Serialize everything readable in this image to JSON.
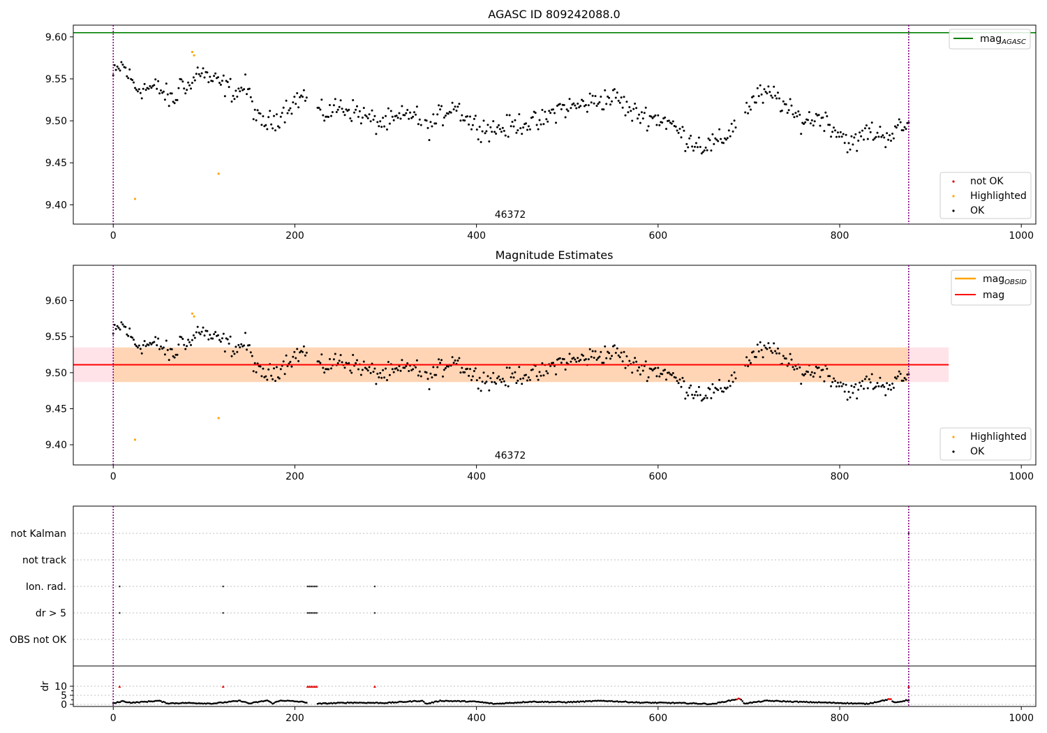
{
  "chart_data": [
    {
      "type": "scatter",
      "title": "AGASC ID 809242088.0",
      "obsid_label": "46372",
      "xlim": [
        -44,
        1016
      ],
      "ylim": [
        9.377,
        9.614
      ],
      "xticks": [
        0,
        200,
        400,
        600,
        800,
        1000
      ],
      "yticks": [
        9.4,
        9.45,
        9.5,
        9.55,
        9.6
      ],
      "obs_boundaries": [
        0,
        876
      ],
      "mag_agasc": 9.605,
      "highlighted_points": [
        [
          24,
          9.407
        ],
        [
          87,
          9.582
        ],
        [
          89,
          9.578
        ],
        [
          116,
          9.437
        ]
      ],
      "ok_series_profile": {
        "x_start": 0,
        "x_end": 876,
        "step": 1.5,
        "anchors": [
          [
            0,
            9.553
          ],
          [
            10,
            9.567
          ],
          [
            25,
            9.539
          ],
          [
            50,
            9.539
          ],
          [
            60,
            9.528
          ],
          [
            68,
            9.523
          ],
          [
            75,
            9.548
          ],
          [
            85,
            9.54
          ],
          [
            95,
            9.562
          ],
          [
            105,
            9.55
          ],
          [
            125,
            9.541
          ],
          [
            135,
            9.533
          ],
          [
            145,
            9.542
          ],
          [
            150,
            9.53
          ],
          [
            160,
            9.498
          ],
          [
            175,
            9.498
          ],
          [
            195,
            9.52
          ],
          [
            210,
            9.53
          ],
          [
            230,
            9.507
          ],
          [
            250,
            9.517
          ],
          [
            270,
            9.51
          ],
          [
            290,
            9.497
          ],
          [
            310,
            9.5
          ],
          [
            330,
            9.51
          ],
          [
            345,
            9.49
          ],
          [
            360,
            9.505
          ],
          [
            375,
            9.52
          ],
          [
            395,
            9.497
          ],
          [
            415,
            9.49
          ],
          [
            435,
            9.492
          ],
          [
            450,
            9.498
          ],
          [
            470,
            9.497
          ],
          [
            490,
            9.515
          ],
          [
            510,
            9.517
          ],
          [
            535,
            9.525
          ],
          [
            555,
            9.528
          ],
          [
            570,
            9.51
          ],
          [
            590,
            9.505
          ],
          [
            610,
            9.5
          ],
          [
            630,
            9.48
          ],
          [
            650,
            9.47
          ],
          [
            670,
            9.475
          ],
          [
            690,
            9.505
          ],
          [
            710,
            9.53
          ],
          [
            730,
            9.53
          ],
          [
            745,
            9.51
          ],
          [
            760,
            9.5
          ],
          [
            780,
            9.505
          ],
          [
            800,
            9.485
          ],
          [
            815,
            9.47
          ],
          [
            830,
            9.488
          ],
          [
            850,
            9.482
          ],
          [
            876,
            9.495
          ]
        ],
        "noise": 0.011
      },
      "legend_lines": [
        "mag_AGASC"
      ],
      "legend_points": [
        "not OK",
        "Highlighted",
        "OK"
      ]
    },
    {
      "type": "scatter",
      "title": "Magnitude Estimates",
      "obsid_label": "46372",
      "xlim": [
        -44,
        1016
      ],
      "ylim": [
        9.372,
        9.649
      ],
      "xticks": [
        0,
        200,
        400,
        600,
        800,
        1000
      ],
      "yticks": [
        9.4,
        9.45,
        9.5,
        9.55,
        9.6
      ],
      "mag": 9.511,
      "mag_band": [
        9.487,
        9.535
      ],
      "mag_obsid": 9.511,
      "legend_lines": [
        "mag_OBSID",
        "mag"
      ],
      "legend_points": [
        "Highlighted",
        "OK"
      ]
    },
    {
      "type": "scatter",
      "flags": [
        "not Kalman",
        "not track",
        "Ion. rad.",
        "dr > 5",
        "OBS not OK"
      ],
      "flag_points": {
        "not Kalman": [
          876
        ],
        "not track": [],
        "Ion. rad.": [
          7,
          121,
          214,
          216,
          218,
          220,
          222,
          224,
          288
        ],
        "dr > 5": [
          7,
          121,
          214,
          216,
          218,
          220,
          222,
          224,
          288
        ],
        "OBS not OK": []
      },
      "dr_ylabel": "dr",
      "dr_yticks": [
        0,
        5,
        10
      ],
      "dr_clipped_points": [
        7,
        121,
        214,
        216,
        218,
        220,
        222,
        224,
        288,
        876
      ],
      "dr_profile_anchors": [
        [
          0,
          0.5
        ],
        [
          10,
          1.8
        ],
        [
          20,
          0.9
        ],
        [
          50,
          2.0
        ],
        [
          60,
          0.6
        ],
        [
          80,
          0.8
        ],
        [
          110,
          0.5
        ],
        [
          140,
          2.0
        ],
        [
          150,
          0.5
        ],
        [
          170,
          2.2
        ],
        [
          175,
          0.5
        ],
        [
          185,
          2.2
        ],
        [
          210,
          1.3
        ],
        [
          222,
          0.3
        ],
        [
          260,
          1.0
        ],
        [
          300,
          0.8
        ],
        [
          340,
          2.0
        ],
        [
          345,
          0.3
        ],
        [
          360,
          2.0
        ],
        [
          400,
          1.5
        ],
        [
          420,
          0.3
        ],
        [
          460,
          1.5
        ],
        [
          500,
          1.2
        ],
        [
          540,
          2.0
        ],
        [
          580,
          1.0
        ],
        [
          620,
          0.8
        ],
        [
          660,
          0.2
        ],
        [
          690,
          3.2
        ],
        [
          695,
          0.5
        ],
        [
          720,
          2.0
        ],
        [
          760,
          1.3
        ],
        [
          800,
          0.8
        ],
        [
          830,
          0.3
        ],
        [
          856,
          3.0
        ],
        [
          860,
          0.8
        ],
        [
          876,
          2.5
        ]
      ]
    }
  ]
}
